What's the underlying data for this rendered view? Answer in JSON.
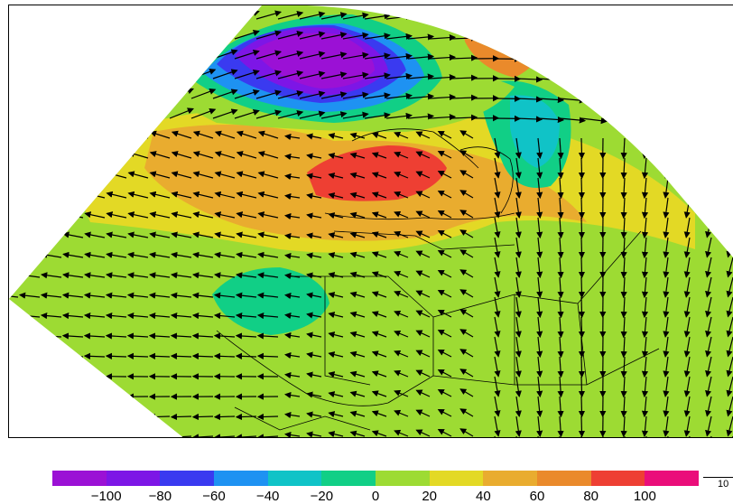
{
  "colorbar": {
    "colors": [
      "#9b11d5",
      "#7d16e6",
      "#3a3af0",
      "#1e92f2",
      "#10c3c7",
      "#11cf86",
      "#9ddb33",
      "#e3d925",
      "#e9ac2f",
      "#ea8a2b",
      "#ee3f33",
      "#ea0d7a"
    ],
    "tick_labels": [
      "−100",
      "−80",
      "−60",
      "−40",
      "−20",
      "0",
      "20",
      "40",
      "60",
      "80",
      "100"
    ]
  },
  "reference_vector": {
    "label": "10"
  },
  "map": {
    "background_color": "#9ddb33",
    "boundary_line_color": "#000000",
    "vector_color": "#000000"
  }
}
